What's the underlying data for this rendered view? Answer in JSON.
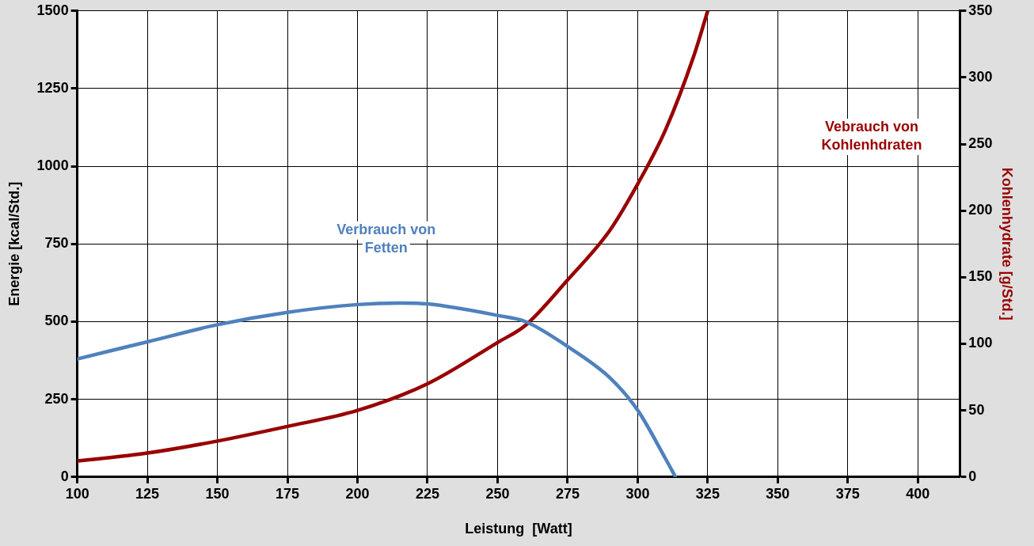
{
  "chart_data": {
    "type": "line",
    "xlabel": "Leistung  [Watt]",
    "ylabel": "Energie [kcal/Std.]",
    "y2label": "Kohlenhydrate [g/Std.]",
    "xlim": [
      100,
      415
    ],
    "xticks": [
      100,
      125,
      150,
      175,
      200,
      225,
      250,
      275,
      300,
      325,
      350,
      375,
      400
    ],
    "ylim": [
      0,
      1500
    ],
    "yticks": [
      0,
      250,
      500,
      750,
      1000,
      1250,
      1500
    ],
    "y2lim": [
      0,
      350
    ],
    "y2ticks": [
      0,
      50,
      100,
      150,
      200,
      250,
      300,
      350
    ],
    "grid": true,
    "legend": false,
    "marker": "none",
    "line_style": "solid",
    "series": [
      {
        "name": "Verbrauch von Fetten",
        "color": "#4f81bd",
        "x": [
          100,
          125,
          150,
          175,
          200,
          215,
          225,
          250,
          260,
          275,
          290,
          300,
          310,
          313.5
        ],
        "values": [
          380,
          435,
          490,
          530,
          555,
          560,
          557,
          520,
          500,
          420,
          320,
          215,
          58,
          0
        ]
      },
      {
        "name": "Vebrauch von Kohlenhdraten",
        "color": "#990000",
        "axis": "y2",
        "x": [
          100,
          125,
          150,
          175,
          200,
          225,
          250,
          260,
          275,
          290,
          300,
          310,
          320,
          325
        ],
        "values": [
          12,
          18,
          27,
          38,
          50,
          70,
          101,
          114,
          148,
          185,
          220,
          261,
          316,
          350
        ]
      }
    ]
  }
}
